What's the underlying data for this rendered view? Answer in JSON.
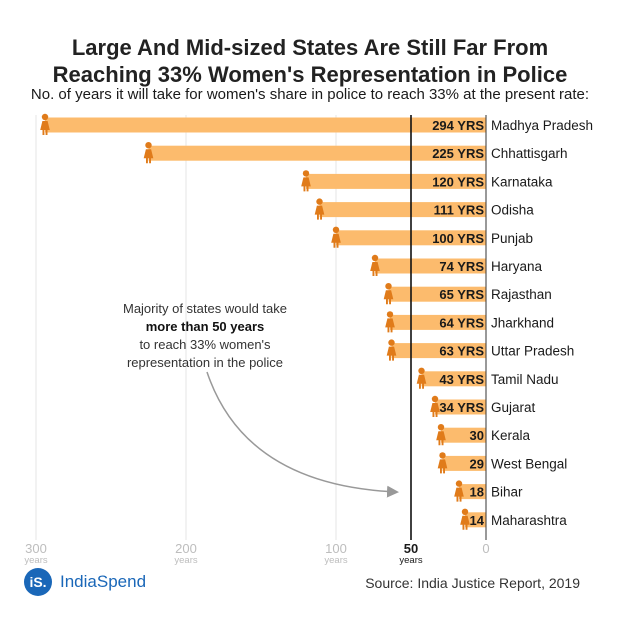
{
  "header": {
    "title_line1": "Large And Mid-sized States Are Still Far From",
    "title_line2": "Reaching 33% Women's Representation in Police",
    "subtitle": "No. of years it will take for women's share in police to reach 33% at the present rate:"
  },
  "annotation": {
    "line1": "Majority of states would take",
    "line2": "more than 50 years",
    "line3": "to reach 33% women's",
    "line4": "representation in the police"
  },
  "footer": {
    "logo_mark": "iS.",
    "logo_text": "IndiaSpend",
    "source": "Source: India Justice Report, 2019"
  },
  "colors": {
    "bar": "#fcbb6d",
    "figure": "#e07b1a",
    "reference_line": "#111111",
    "grid": "#e6e6e6",
    "axis_label": "#bdbdbd"
  },
  "chart_data": {
    "type": "bar",
    "orientation": "horizontal",
    "direction": "reversed",
    "title": "Large And Mid-sized States Are Still Far From Reaching 33% Women's Representation in Police",
    "subtitle": "No. of years it will take for women's share in police to reach 33% at the present rate:",
    "categories": [
      "Madhya Pradesh",
      "Chhattisgarh",
      "Karnataka",
      "Odisha",
      "Punjab",
      "Haryana",
      "Rajasthan",
      "Jharkhand",
      "Uttar Pradesh",
      "Tamil Nadu",
      "Gujarat",
      "Kerala",
      "West Bengal",
      "Bihar",
      "Maharashtra"
    ],
    "values": [
      294,
      225,
      120,
      111,
      100,
      74,
      65,
      64,
      63,
      43,
      34,
      30,
      29,
      18,
      14
    ],
    "value_labels": [
      "294 YRS",
      "225 YRS",
      "120 YRS",
      "111 YRS",
      "100 YRS",
      "74 YRS",
      "65 YRS",
      "64 YRS",
      "63 YRS",
      "43 YRS",
      "34 YRS",
      "30",
      "29",
      "18",
      "14"
    ],
    "xlim": [
      0,
      300
    ],
    "grid": true,
    "x_ticks": [
      {
        "value": 300,
        "label": "300",
        "unit": "years"
      },
      {
        "value": 200,
        "label": "200",
        "unit": "years"
      },
      {
        "value": 100,
        "label": "100",
        "unit": "years"
      },
      {
        "value": 50,
        "label": "50",
        "unit": "years",
        "emphasis": true
      },
      {
        "value": 0,
        "label": "0",
        "unit": ""
      }
    ],
    "reference_line": 50
  }
}
